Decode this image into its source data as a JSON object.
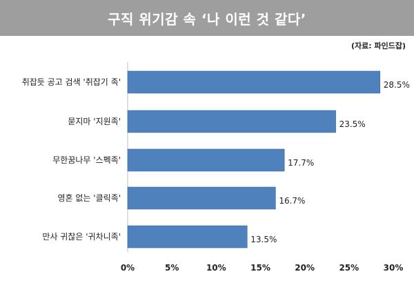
{
  "header": {
    "title": "구직 위기감 속 ‘나 이런 것 같다’",
    "source": "(자료: 파인드잡)"
  },
  "chart_data": {
    "type": "bar",
    "orientation": "horizontal",
    "categories": [
      "취잡듯 공고 검색 '취잡기 족'",
      "묻지마 '지원족'",
      "무한꿈나무 '스펙족'",
      "영혼 없는 '클릭족'",
      "만사 귀찮은 '귀차니족'"
    ],
    "values": [
      28.5,
      23.5,
      17.7,
      16.7,
      13.5
    ],
    "value_labels": [
      "28.5%",
      "23.5%",
      "17.7%",
      "16.7%",
      "13.5%"
    ],
    "xlim": [
      0,
      30
    ],
    "xticks": [
      0,
      5,
      10,
      15,
      20,
      25,
      30
    ],
    "xtick_labels": [
      "0%",
      "5%",
      "10%",
      "15%",
      "20%",
      "25%",
      "30%"
    ],
    "bar_color": "#4f81bd",
    "grid": false,
    "legend": "none"
  }
}
